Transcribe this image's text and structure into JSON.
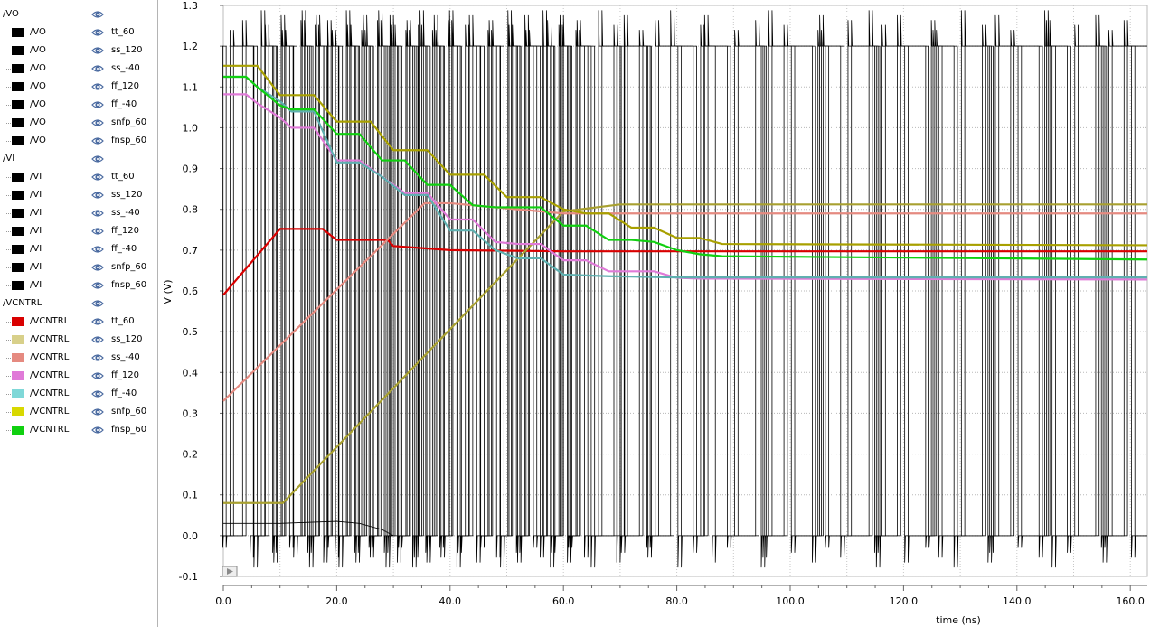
{
  "legend": {
    "groups": [
      {
        "name": "/VO",
        "items": [
          {
            "label": "/VO",
            "corner": "tt_60",
            "color": "#000000"
          },
          {
            "label": "/VO",
            "corner": "ss_120",
            "color": "#000000"
          },
          {
            "label": "/VO",
            "corner": "ss_-40",
            "color": "#000000"
          },
          {
            "label": "/VO",
            "corner": "ff_120",
            "color": "#000000"
          },
          {
            "label": "/VO",
            "corner": "ff_-40",
            "color": "#000000"
          },
          {
            "label": "/VO",
            "corner": "snfp_60",
            "color": "#000000"
          },
          {
            "label": "/VO",
            "corner": "fnsp_60",
            "color": "#000000"
          }
        ]
      },
      {
        "name": "/VI",
        "items": [
          {
            "label": "/VI",
            "corner": "tt_60",
            "color": "#000000"
          },
          {
            "label": "/VI",
            "corner": "ss_120",
            "color": "#000000"
          },
          {
            "label": "/VI",
            "corner": "ss_-40",
            "color": "#000000"
          },
          {
            "label": "/VI",
            "corner": "ff_120",
            "color": "#000000"
          },
          {
            "label": "/VI",
            "corner": "ff_-40",
            "color": "#000000"
          },
          {
            "label": "/VI",
            "corner": "snfp_60",
            "color": "#000000"
          },
          {
            "label": "/VI",
            "corner": "fnsp_60",
            "color": "#000000"
          }
        ]
      },
      {
        "name": "/VCNTRL",
        "items": [
          {
            "label": "/VCNTRL",
            "corner": "tt_60",
            "color": "#d90000"
          },
          {
            "label": "/VCNTRL",
            "corner": "ss_120",
            "color": "#d8d08a"
          },
          {
            "label": "/VCNTRL",
            "corner": "ss_-40",
            "color": "#e58a80"
          },
          {
            "label": "/VCNTRL",
            "corner": "ff_120",
            "color": "#e07ad8"
          },
          {
            "label": "/VCNTRL",
            "corner": "ff_-40",
            "color": "#7fd8d8"
          },
          {
            "label": "/VCNTRL",
            "corner": "snfp_60",
            "color": "#d8d800"
          },
          {
            "label": "/VCNTRL",
            "corner": "fnsp_60",
            "color": "#10d010"
          }
        ]
      }
    ]
  },
  "chart_data": {
    "type": "line",
    "xlabel": "time (ns)",
    "ylabel": "V (V)",
    "xlim": [
      0,
      163
    ],
    "ylim": [
      -0.1,
      1.3
    ],
    "x_ticks": [
      "0.0",
      "20.0",
      "40.0",
      "60.0",
      "80.0",
      "100.0",
      "120.0",
      "140.0",
      "160.0"
    ],
    "y_ticks": [
      "-0.1",
      "0.0",
      "0.1",
      "0.2",
      "0.3",
      "0.4",
      "0.5",
      "0.6",
      "0.7",
      "0.8",
      "0.9",
      "1.0",
      "1.1",
      "1.2",
      "1.3"
    ],
    "grid": true,
    "series": [
      {
        "corner": "tt_60",
        "color": "#d90000",
        "x": [
          0,
          10,
          17.5,
          20,
          29,
          30,
          40,
          60,
          163
        ],
        "y": [
          0.59,
          0.752,
          0.752,
          0.725,
          0.725,
          0.71,
          0.7,
          0.697,
          0.697
        ]
      },
      {
        "corner": "ss_120",
        "color": "#a8a030",
        "x": [
          0,
          10.5,
          60,
          70,
          163
        ],
        "y": [
          0.08,
          0.08,
          0.795,
          0.812,
          0.812
        ]
      },
      {
        "corner": "ss_-40",
        "color": "#e58a80",
        "x": [
          0,
          35.5,
          40,
          60,
          163
        ],
        "y": [
          0.33,
          0.815,
          0.815,
          0.79,
          0.79
        ]
      },
      {
        "corner": "ff_120",
        "color": "#e07ad8",
        "x": [
          0,
          4,
          6,
          10,
          12,
          16,
          20,
          24,
          28,
          32,
          36,
          40,
          44,
          48,
          52,
          56,
          60,
          64,
          68,
          72,
          76,
          80,
          84,
          163
        ],
        "y": [
          1.082,
          1.082,
          1.06,
          1.025,
          1.0,
          1.0,
          0.92,
          0.92,
          0.88,
          0.84,
          0.84,
          0.775,
          0.775,
          0.72,
          0.715,
          0.715,
          0.675,
          0.675,
          0.648,
          0.648,
          0.648,
          0.632,
          0.63,
          0.628
        ]
      },
      {
        "corner": "ff_-40",
        "color": "#5fb0b0",
        "x": [
          0,
          4,
          6,
          10,
          12,
          16,
          20,
          24,
          28,
          32,
          36,
          40,
          44,
          48,
          52,
          56,
          60,
          64,
          68,
          72,
          76,
          80,
          84,
          163
        ],
        "y": [
          1.125,
          1.125,
          1.1,
          1.065,
          1.04,
          1.04,
          0.915,
          0.915,
          0.88,
          0.835,
          0.835,
          0.748,
          0.748,
          0.7,
          0.68,
          0.68,
          0.64,
          0.638,
          0.636,
          0.635,
          0.634,
          0.633,
          0.633,
          0.633
        ]
      },
      {
        "corner": "snfp_60",
        "color": "#a8a000",
        "x": [
          0,
          6,
          10,
          16,
          20,
          26,
          30,
          36,
          40,
          46,
          50,
          56,
          60,
          64,
          68,
          72,
          76,
          80,
          84,
          88,
          163
        ],
        "y": [
          1.152,
          1.152,
          1.08,
          1.08,
          1.015,
          1.015,
          0.945,
          0.945,
          0.885,
          0.885,
          0.83,
          0.83,
          0.8,
          0.79,
          0.79,
          0.755,
          0.755,
          0.73,
          0.73,
          0.715,
          0.712
        ]
      },
      {
        "corner": "fnsp_60",
        "color": "#10d010",
        "x": [
          0,
          4,
          6,
          10,
          12,
          16,
          20,
          24,
          28,
          32,
          36,
          40,
          44,
          48,
          52,
          56,
          60,
          64,
          68,
          72,
          76,
          80,
          84,
          88,
          163
        ],
        "y": [
          1.125,
          1.125,
          1.1,
          1.055,
          1.045,
          1.045,
          0.985,
          0.985,
          0.92,
          0.92,
          0.86,
          0.86,
          0.81,
          0.805,
          0.805,
          0.805,
          0.76,
          0.76,
          0.725,
          0.725,
          0.72,
          0.7,
          0.69,
          0.685,
          0.677
        ]
      }
    ],
    "square_waves": {
      "color": "#000000",
      "high": 1.2,
      "low": 0.0,
      "edges": [
        0.5,
        4,
        6,
        8,
        9.5,
        11,
        13,
        14.5,
        15.5,
        17,
        18.5,
        19,
        21,
        22.5,
        24,
        25,
        26.5,
        28,
        29,
        30,
        31.5,
        33,
        34,
        35,
        36.5,
        37.5,
        39,
        40.5,
        42,
        44,
        46,
        47.5,
        49.5,
        51,
        52.5,
        54,
        56.5,
        57,
        58.5,
        60,
        61.5,
        63,
        65.5,
        69.5,
        70,
        74,
        75.5,
        79.5,
        83.5,
        85.5,
        89.5,
        94.5,
        95.5,
        99.5,
        104.5,
        105.5,
        109.5,
        114.5,
        115.5,
        119.5,
        124.5,
        125.5,
        129.5,
        134.5,
        135.5,
        139.5,
        144.5,
        145.5,
        149.5,
        154.5,
        155.5,
        159.5
      ]
    },
    "vi_start": {
      "color": "#000000",
      "x": [
        0,
        10,
        20,
        24,
        28,
        30,
        32
      ],
      "y": [
        0.03,
        0.03,
        0.035,
        0.03,
        0.015,
        0.0,
        0.0
      ]
    }
  }
}
